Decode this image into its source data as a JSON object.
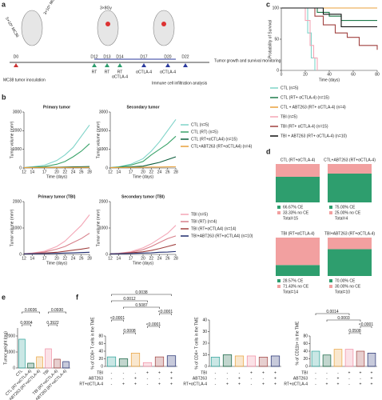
{
  "panels": {
    "a": "a",
    "b": "b",
    "c": "c",
    "d": "d",
    "e": "e",
    "f": "f"
  },
  "timeline": {
    "cells": [
      "5×10⁵ MC38",
      "3×10⁵ MC38"
    ],
    "dose": "3×8Gy",
    "days": [
      "D0",
      "D12",
      "D13",
      "D14",
      "D17",
      "D20",
      "D22"
    ],
    "events": [
      [],
      [
        "RT"
      ],
      [
        "RT"
      ],
      [
        "RT",
        "αCTLA-4"
      ],
      [
        "αCTLA-4"
      ],
      [
        "αCTLA-4"
      ],
      []
    ],
    "inoculation": "MC38 tumor inoculation",
    "monitoring": "Tumor growth and survival monitoring",
    "analysis": "Immune cell infiltration analysis"
  },
  "survival": {
    "xlabel": "Time (days)",
    "ylabel": "Probability of Survival",
    "xlim": [
      0,
      80
    ],
    "ylim": [
      0,
      100
    ],
    "xticks": [
      0,
      20,
      40,
      60,
      80
    ],
    "yticks": [
      0,
      50,
      100
    ],
    "series": [
      {
        "name": "CTL (n=5)",
        "color": "#7fd4c9",
        "x": [
          0,
          20,
          22,
          25,
          28
        ],
        "values": [
          100,
          100,
          60,
          20,
          0
        ]
      },
      {
        "name": "CTL (RT+ αCTLA-4) (n=15)",
        "color": "#1f7a4a",
        "x": [
          0,
          30,
          40,
          50,
          80
        ],
        "values": [
          100,
          93,
          87,
          80,
          80
        ]
      },
      {
        "name": "CTL + ABT263 (RT+ αCTLA-4) (n=4)",
        "color": "#e8a13a",
        "x": [
          0,
          80
        ],
        "values": [
          100,
          100
        ]
      },
      {
        "name": "TBI (n=5)",
        "color": "#f4a6b6",
        "x": [
          0,
          20,
          24,
          27,
          30
        ],
        "values": [
          100,
          80,
          40,
          20,
          0
        ]
      },
      {
        "name": "TBI (RT+ αCTLA-4) (n=15)",
        "color": "#a0403f",
        "x": [
          0,
          28,
          35,
          45,
          55,
          65,
          80
        ],
        "values": [
          100,
          87,
          73,
          60,
          53,
          40,
          33
        ]
      },
      {
        "name": "TBI + ABT263 (RT+ αCTLA-4) (n=10)",
        "color": "#111111",
        "x": [
          0,
          35,
          50,
          80
        ],
        "values": [
          100,
          90,
          70,
          70
        ]
      }
    ]
  },
  "growth": {
    "xlabel": "Time (days)",
    "ylabel": "Tumor volume (mm³)",
    "x": [
      12,
      14,
      17,
      20,
      22,
      24,
      26,
      28
    ],
    "xticks": [
      12,
      14,
      17,
      20,
      22,
      24,
      26,
      28
    ],
    "legends": [
      [
        {
          "name": "CTL (n=5)",
          "color": "#7fd4c9"
        },
        {
          "name": "CTL (RT) (n=5)",
          "color": "#3aa36a"
        },
        {
          "name": "CTL (RT+αCTLA4) (n=15)",
          "color": "#0b5d3b"
        },
        {
          "name": "CTL+ABT263 (RT+αCTLA4) (n=4)",
          "color": "#e8a13a"
        }
      ],
      [
        {
          "name": "TBI (n=5)",
          "color": "#f4a6b6"
        },
        {
          "name": "TBI (RT) (n=4)",
          "color": "#d77f8a"
        },
        {
          "name": "TBI (RT+αCTLA4) (n=14)",
          "color": "#a0403f"
        },
        {
          "name": "TBI+ABT263 (RT+αCTLA4) (n=10)",
          "color": "#1f2b6e"
        }
      ]
    ],
    "charts": [
      {
        "title": "Primary tumor",
        "legend": 0,
        "ylim": [
          0,
          3000
        ],
        "yticks": [
          0,
          1000,
          2000,
          3000
        ],
        "series": [
          [
            20,
            60,
            150,
            400,
            700,
            1100,
            1700,
            2300
          ],
          [
            20,
            40,
            80,
            200,
            350,
            600,
            900,
            1300
          ],
          [
            20,
            30,
            40,
            40,
            50,
            60,
            70,
            80
          ],
          [
            20,
            25,
            30,
            30,
            30,
            30,
            30,
            30
          ]
        ]
      },
      {
        "title": "Secondary tumor",
        "legend": 0,
        "ylim": [
          0,
          3000
        ],
        "yticks": [
          0,
          1000,
          2000,
          3000
        ],
        "series": [
          [
            20,
            60,
            200,
            500,
            900,
            1400,
            2000,
            2600
          ],
          [
            20,
            50,
            150,
            350,
            700,
            1000,
            1300,
            1700
          ],
          [
            20,
            30,
            60,
            100,
            200,
            300,
            450,
            600
          ],
          [
            20,
            25,
            30,
            40,
            50,
            50,
            60,
            70
          ]
        ]
      },
      {
        "title": "Primary tumor (TBI)",
        "legend": 1,
        "ylim": [
          0,
          2000
        ],
        "yticks": [
          0,
          1000,
          2000
        ],
        "series": [
          [
            20,
            50,
            120,
            300,
            500,
            800,
            1100,
            1500
          ],
          [
            20,
            40,
            90,
            200,
            300,
            450,
            600,
            800
          ],
          [
            20,
            30,
            50,
            80,
            120,
            160,
            200,
            250
          ],
          [
            20,
            25,
            30,
            40,
            50,
            60,
            70,
            80
          ]
        ]
      },
      {
        "title": "Secondary tumor (TBI)",
        "legend": 1,
        "ylim": [
          0,
          2000
        ],
        "yticks": [
          0,
          1000,
          2000
        ],
        "series": [
          [
            20,
            40,
            100,
            250,
            400,
            600,
            800,
            1100
          ],
          [
            20,
            35,
            80,
            180,
            300,
            450,
            600,
            700
          ],
          [
            20,
            30,
            60,
            100,
            150,
            220,
            300,
            380
          ],
          [
            20,
            25,
            35,
            50,
            60,
            80,
            90,
            110
          ]
        ]
      }
    ]
  },
  "ce": {
    "colors": [
      "#2e9e6e",
      "#f2a0a0"
    ],
    "blocks": [
      {
        "title": "CTL (RT+αCTLA-4)",
        "values": [
          66.67,
          33.33
        ],
        "value_labels": [
          "66.67%  CE",
          "33.33%  no CE"
        ],
        "total": "Total=15"
      },
      {
        "title": "CTL+ABT263 (RT+αCTLA-4)",
        "values": [
          75,
          25
        ],
        "value_labels": [
          "75.00%  CE",
          "25.00%  no CE"
        ],
        "total": "Total=4"
      },
      {
        "title": "TBI (RT+αCTLA-4)",
        "values": [
          28.57,
          71.43
        ],
        "value_labels": [
          "28.57%  CE",
          "71.43%  no CE"
        ],
        "total": "Total=14"
      },
      {
        "title": "TBI+ABT263 (RT+αCTLA-4)",
        "values": [
          70,
          30
        ],
        "value_labels": [
          "70.00%  CE",
          "30.00%  no CE"
        ],
        "total": "Total=10"
      }
    ]
  },
  "colors": [
    "#2aa198",
    "#0b5d3b",
    "#e8a13a",
    "#f08aa0",
    "#a0403f",
    "#1f2b6e"
  ],
  "weight": {
    "ylabel": "Tumor weight (mg)",
    "ylim": [
      0,
      2500
    ],
    "yticks": [
      0,
      1000,
      2000
    ],
    "categories": [
      "CTL",
      "CTL (RT+αCTLA-4)",
      "CTL+ABT263 (RT+αCTLA-4)",
      "TBI",
      "TBI (RT+αCTLA-4)",
      "TBI+ABT263 (RT+αCTLA-4)"
    ],
    "values": [
      1800,
      300,
      700,
      1200,
      550,
      400
    ],
    "pvalues": [
      "0.0004",
      "0.0036",
      "0.3922",
      "0.0930"
    ]
  },
  "cells": {
    "conditions": [
      {
        "name": "TBI",
        "signs": [
          "-",
          "-",
          "-",
          "+",
          "+",
          "+"
        ]
      },
      {
        "name": "ABT263",
        "signs": [
          "-",
          "-",
          "+",
          "-",
          "-",
          "+"
        ]
      },
      {
        "name": "RT+αCTLA-4",
        "signs": [
          "-",
          "+",
          "+",
          "-",
          "+",
          "+"
        ]
      }
    ],
    "charts": [
      {
        "ylabel": "% of CD8+ T cells in the TME",
        "ylim": [
          0,
          80
        ],
        "yticks": [
          0,
          20,
          40,
          60,
          80
        ],
        "values": [
          25,
          20,
          35,
          10,
          25,
          28
        ],
        "pvalues": [
          "0.0012",
          "0.0038",
          "0.5087",
          "<0.0001",
          "0.0008",
          "<0.0001",
          "<0.0001"
        ]
      },
      {
        "ylabel": "% of CD4+ T cells in the TME",
        "ylim": [
          0,
          40
        ],
        "yticks": [
          0,
          10,
          20,
          30,
          40
        ],
        "values": [
          8,
          10,
          9,
          9,
          8,
          9
        ]
      },
      {
        "ylabel": "% of CD11b+ in the TME",
        "ylim": [
          0,
          80
        ],
        "yticks": [
          0,
          20,
          40,
          60,
          80
        ],
        "values": [
          40,
          30,
          45,
          45,
          40,
          35
        ],
        "pvalues": [
          "0.0014",
          "0.0003",
          "0.0508",
          "<0.0001"
        ]
      }
    ]
  }
}
